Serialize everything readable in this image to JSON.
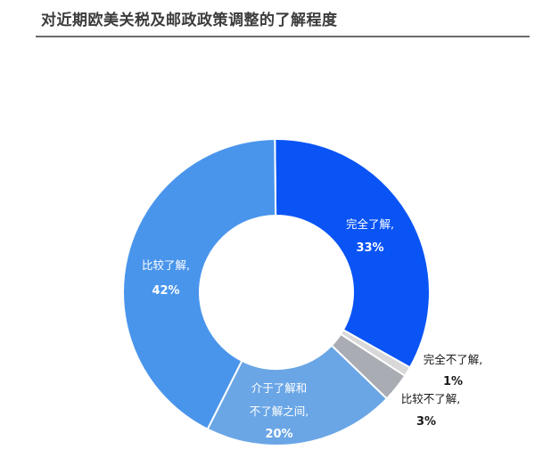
{
  "header": {
    "title": "对近期欧美关税及邮政政策调整的了解程度"
  },
  "chart_data": {
    "type": "pie",
    "style": "donut",
    "legend": "none",
    "slices": [
      {
        "label": "完全了解,",
        "value": 33,
        "value_label": "33%",
        "color": "#0a54f5",
        "label_color": "#ffffff"
      },
      {
        "label": "完全不了解,",
        "value": 1,
        "value_label": "1%",
        "color": "#d8d8d8",
        "label_color": "#1a1a1a"
      },
      {
        "label": "比较不了解,",
        "value": 3,
        "value_label": "3%",
        "color": "#a9adb3",
        "label_color": "#1a1a1a"
      },
      {
        "label": "介于了解和不了解之间,",
        "value": 20,
        "value_label": "20%",
        "color": "#6aa6e6",
        "label_color": "#ffffff"
      },
      {
        "label": "比较了解,",
        "value": 42,
        "value_label": "42%",
        "color": "#4a95ec",
        "label_color": "#ffffff"
      }
    ]
  }
}
